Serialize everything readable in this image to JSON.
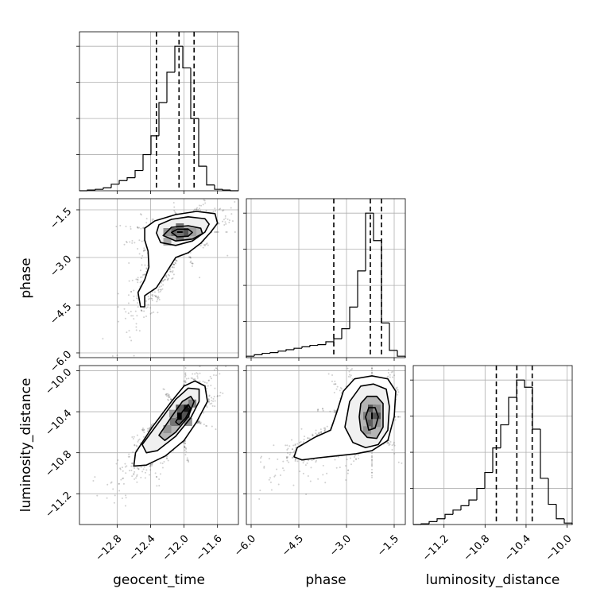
{
  "chart_data": {
    "type": "corner",
    "parameters": [
      "geocent_time",
      "phase",
      "luminosity_distance"
    ],
    "axis_labels": {
      "geocent_time": "geocent_time",
      "phase": "phase",
      "luminosity_distance": "luminosity_distance"
    },
    "ranges": {
      "geocent_time": [
        -13.25,
        -11.35
      ],
      "phase": [
        -6.15,
        -1.15
      ],
      "luminosity_distance": [
        -11.5,
        -9.95
      ]
    },
    "ticks": {
      "geocent_time": [
        -12.8,
        -12.4,
        -12.0,
        -11.6
      ],
      "phase": [
        -6.0,
        -4.5,
        -3.0,
        -1.5
      ],
      "luminosity_distance": [
        -11.2,
        -10.8,
        -10.4,
        -10.0
      ]
    },
    "tick_labels": {
      "geocent_time": [
        "−12.8",
        "−12.4",
        "−12.0",
        "−11.6"
      ],
      "phase": [
        "−6.0",
        "−4.5",
        "−3.0",
        "−1.5"
      ],
      "luminosity_distance": [
        "−11.2",
        "−10.8",
        "−10.4",
        "−10.0"
      ]
    },
    "grid": true,
    "histograms": {
      "geocent_time": {
        "bin_edges": [
          -13.25,
          -13.155,
          -13.06,
          -12.965,
          -12.87,
          -12.775,
          -12.68,
          -12.585,
          -12.49,
          -12.395,
          -12.3,
          -12.205,
          -12.11,
          -12.015,
          -11.92,
          -11.825,
          -11.73,
          -11.635,
          -11.54,
          -11.445,
          -11.35
        ],
        "counts": [
          0,
          0.005,
          0.01,
          0.02,
          0.045,
          0.07,
          0.09,
          0.14,
          0.25,
          0.38,
          0.61,
          0.82,
          1.0,
          0.85,
          0.5,
          0.17,
          0.04,
          0.01,
          0.005,
          0
        ],
        "quantiles": [
          -12.33,
          -12.06,
          -11.88
        ]
      },
      "phase": {
        "bin_edges": [
          -6.15,
          -5.9,
          -5.65,
          -5.4,
          -5.15,
          -4.9,
          -4.65,
          -4.4,
          -4.15,
          -3.9,
          -3.65,
          -3.4,
          -3.15,
          -2.9,
          -2.65,
          -2.4,
          -2.15,
          -1.9,
          -1.65,
          -1.4,
          -1.15
        ],
        "counts": [
          0.01,
          0.02,
          0.03,
          0.035,
          0.045,
          0.055,
          0.065,
          0.075,
          0.085,
          0.09,
          0.11,
          0.13,
          0.2,
          0.35,
          0.6,
          1.0,
          0.81,
          0.24,
          0.05,
          0.01
        ],
        "quantiles": [
          -3.4,
          -2.25,
          -1.9
        ]
      },
      "luminosity_distance": {
        "bin_edges": [
          -11.5,
          -11.4225,
          -11.345,
          -11.2675,
          -11.19,
          -11.1125,
          -11.035,
          -10.9575,
          -10.88,
          -10.8025,
          -10.725,
          -10.6475,
          -10.57,
          -10.4925,
          -10.415,
          -10.3375,
          -10.26,
          -10.1825,
          -10.105,
          -10.0275,
          -9.95
        ],
        "counts": [
          0,
          0.005,
          0.02,
          0.04,
          0.07,
          0.1,
          0.13,
          0.17,
          0.25,
          0.36,
          0.53,
          0.69,
          0.88,
          1.0,
          0.95,
          0.66,
          0.32,
          0.14,
          0.04,
          0.01
        ],
        "quantiles": [
          -10.69,
          -10.49,
          -10.34
        ]
      }
    },
    "contour_panels": [
      {
        "x": "geocent_time",
        "y": "phase",
        "center": [
          -12.05,
          -2.2
        ],
        "cloud_samples": 2200,
        "density_blocks": [
          [
            -12.05,
            -2.2,
            1.0
          ],
          [
            -11.97,
            -2.2,
            0.6
          ],
          [
            -12.13,
            -2.2,
            0.5
          ],
          [
            -12.05,
            -2.05,
            0.45
          ],
          [
            -12.05,
            -2.35,
            0.45
          ],
          [
            -12.2,
            -2.2,
            0.3
          ],
          [
            -11.9,
            -2.2,
            0.25
          ],
          [
            -12.2,
            -2.5,
            0.2
          ]
        ],
        "contours": [
          [
            [
              -12.15,
              -2.21
            ],
            [
              -12.08,
              -2.11
            ],
            [
              -11.95,
              -2.11
            ],
            [
              -11.9,
              -2.21
            ],
            [
              -11.95,
              -2.33
            ],
            [
              -12.08,
              -2.35
            ]
          ],
          [
            [
              -12.25,
              -2.31
            ],
            [
              -12.15,
              -2.05
            ],
            [
              -11.95,
              -2.0
            ],
            [
              -11.8,
              -2.08
            ],
            [
              -11.78,
              -2.25
            ],
            [
              -11.9,
              -2.42
            ],
            [
              -12.1,
              -2.48
            ]
          ],
          [
            [
              -12.33,
              -2.23
            ],
            [
              -12.3,
              -1.97
            ],
            [
              -12.15,
              -1.8
            ],
            [
              -11.95,
              -1.72
            ],
            [
              -11.75,
              -1.78
            ],
            [
              -11.7,
              -1.95
            ],
            [
              -11.75,
              -2.2
            ],
            [
              -11.9,
              -2.48
            ],
            [
              -12.1,
              -2.62
            ],
            [
              -12.28,
              -2.53
            ]
          ],
          [
            [
              -12.47,
              -2.08
            ],
            [
              -12.35,
              -1.85
            ],
            [
              -12.1,
              -1.65
            ],
            [
              -11.85,
              -1.55
            ],
            [
              -11.63,
              -1.62
            ],
            [
              -11.6,
              -1.92
            ],
            [
              -11.68,
              -2.2
            ],
            [
              -11.8,
              -2.55
            ],
            [
              -11.95,
              -2.85
            ],
            [
              -12.1,
              -3.0
            ],
            [
              -12.22,
              -3.5
            ],
            [
              -12.33,
              -3.95
            ],
            [
              -12.47,
              -4.2
            ],
            [
              -12.47,
              -4.55
            ],
            [
              -12.52,
              -4.55
            ],
            [
              -12.55,
              -4.1
            ],
            [
              -12.47,
              -3.7
            ],
            [
              -12.42,
              -3.3
            ],
            [
              -12.43,
              -2.8
            ],
            [
              -12.47,
              -2.45
            ]
          ]
        ]
      },
      {
        "x": "geocent_time",
        "y": "luminosity_distance",
        "center": [
          -12.05,
          -10.45
        ],
        "cloud_samples": 2200,
        "density_blocks": [
          [
            -12.05,
            -10.44,
            1.0
          ],
          [
            -11.98,
            -10.37,
            0.9
          ],
          [
            -11.98,
            -10.44,
            0.6
          ],
          [
            -12.05,
            -10.37,
            0.55
          ],
          [
            -12.12,
            -10.5,
            0.45
          ],
          [
            -11.9,
            -10.32,
            0.4
          ],
          [
            -12.2,
            -10.57,
            0.3
          ],
          [
            -12.13,
            -10.42,
            0.25
          ],
          [
            -11.95,
            -10.5,
            0.3
          ]
        ],
        "contours": [
          [
            [
              -12.1,
              -10.5
            ],
            [
              -12.02,
              -10.4
            ],
            [
              -11.95,
              -10.33
            ],
            [
              -11.92,
              -10.37
            ],
            [
              -11.98,
              -10.46
            ],
            [
              -12.06,
              -10.53
            ]
          ],
          [
            [
              -12.3,
              -10.63
            ],
            [
              -12.15,
              -10.45
            ],
            [
              -12.02,
              -10.3
            ],
            [
              -11.92,
              -10.25
            ],
            [
              -11.88,
              -10.3
            ],
            [
              -11.95,
              -10.45
            ],
            [
              -12.1,
              -10.6
            ],
            [
              -12.23,
              -10.68
            ]
          ],
          [
            [
              -12.5,
              -10.72
            ],
            [
              -12.3,
              -10.5
            ],
            [
              -12.1,
              -10.28
            ],
            [
              -11.95,
              -10.17
            ],
            [
              -11.82,
              -10.18
            ],
            [
              -11.82,
              -10.3
            ],
            [
              -11.92,
              -10.46
            ],
            [
              -12.1,
              -10.64
            ],
            [
              -12.32,
              -10.78
            ],
            [
              -12.45,
              -10.8
            ]
          ],
          [
            [
              -12.6,
              -10.93
            ],
            [
              -12.58,
              -10.8
            ],
            [
              -12.38,
              -10.55
            ],
            [
              -12.15,
              -10.3
            ],
            [
              -12.0,
              -10.15
            ],
            [
              -11.87,
              -10.1
            ],
            [
              -11.75,
              -10.15
            ],
            [
              -11.72,
              -10.3
            ],
            [
              -11.85,
              -10.5
            ],
            [
              -12.0,
              -10.68
            ],
            [
              -12.22,
              -10.83
            ],
            [
              -12.45,
              -10.92
            ]
          ]
        ]
      },
      {
        "x": "phase",
        "y": "luminosity_distance",
        "center": [
          -2.2,
          -10.45
        ],
        "cloud_samples": 2200,
        "density_blocks": [
          [
            -2.2,
            -10.44,
            1.0
          ],
          [
            -2.05,
            -10.44,
            0.6
          ],
          [
            -2.2,
            -10.37,
            0.6
          ],
          [
            -2.2,
            -10.51,
            0.55
          ],
          [
            -2.35,
            -10.44,
            0.4
          ],
          [
            -2.35,
            -10.58,
            0.3
          ],
          [
            -2.05,
            -10.37,
            0.35
          ],
          [
            -2.05,
            -10.51,
            0.3
          ]
        ],
        "contours": [
          [
            [
              -2.4,
              -10.45
            ],
            [
              -2.3,
              -10.36
            ],
            [
              -2.1,
              -10.36
            ],
            [
              -2.0,
              -10.45
            ],
            [
              -2.1,
              -10.56
            ],
            [
              -2.3,
              -10.58
            ]
          ],
          [
            [
              -2.6,
              -10.45
            ],
            [
              -2.55,
              -10.32
            ],
            [
              -2.35,
              -10.25
            ],
            [
              -2.05,
              -10.25
            ],
            [
              -1.85,
              -10.32
            ],
            [
              -1.85,
              -10.55
            ],
            [
              -2.05,
              -10.66
            ],
            [
              -2.35,
              -10.65
            ],
            [
              -2.55,
              -10.58
            ]
          ],
          [
            [
              -3.05,
              -10.55
            ],
            [
              -2.9,
              -10.3
            ],
            [
              -2.55,
              -10.15
            ],
            [
              -2.15,
              -10.13
            ],
            [
              -1.75,
              -10.18
            ],
            [
              -1.65,
              -10.35
            ],
            [
              -1.7,
              -10.58
            ],
            [
              -2.0,
              -10.72
            ],
            [
              -2.4,
              -10.75
            ],
            [
              -2.8,
              -10.7
            ]
          ],
          [
            [
              -4.65,
              -10.84
            ],
            [
              -4.55,
              -10.75
            ],
            [
              -4.0,
              -10.65
            ],
            [
              -3.5,
              -10.58
            ],
            [
              -3.3,
              -10.4
            ],
            [
              -3.1,
              -10.2
            ],
            [
              -2.75,
              -10.08
            ],
            [
              -2.2,
              -10.05
            ],
            [
              -1.7,
              -10.08
            ],
            [
              -1.45,
              -10.2
            ],
            [
              -1.5,
              -10.45
            ],
            [
              -1.7,
              -10.68
            ],
            [
              -2.2,
              -10.78
            ],
            [
              -2.7,
              -10.81
            ],
            [
              -3.3,
              -10.83
            ],
            [
              -3.9,
              -10.85
            ],
            [
              -4.4,
              -10.87
            ]
          ]
        ]
      }
    ]
  }
}
